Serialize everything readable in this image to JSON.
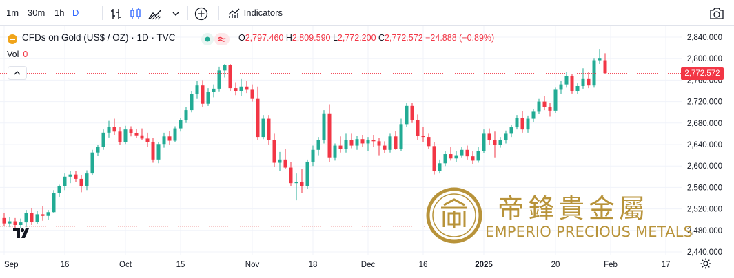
{
  "toolbar": {
    "intervals": [
      {
        "label": "1m",
        "active": false
      },
      {
        "label": "30m",
        "active": false
      },
      {
        "label": "1h",
        "active": false
      },
      {
        "label": "D",
        "active": true
      }
    ],
    "indicators_label": "Indicators"
  },
  "legend": {
    "symbol_title": "CFDs on Gold (US$ / OZ) · 1D · TVC",
    "open_label": "O",
    "open": "2,797.460",
    "high_label": "H",
    "high": "2,809.590",
    "low_label": "L",
    "low": "2,772.200",
    "close_label": "C",
    "close": "2,772.572",
    "change": "−24.888 (−0.89%)",
    "volume_label": "Vol",
    "volume": "0"
  },
  "last_price_label": "2,772.572",
  "watermark": {
    "chinese": "帝鋒貴金屬",
    "english": "EMPERIO PRECIOUS METALS"
  },
  "colors": {
    "up": "#22ab94",
    "down": "#f23645",
    "accent": "#2962ff",
    "watermark_gold": "#b8933a",
    "grid": "#f0f3fa"
  },
  "chart_data": {
    "type": "candlestick",
    "title": "CFDs on Gold (US$ / OZ) · 1D · TVC",
    "ylim": [
      2440,
      2840
    ],
    "y_ticks": [
      2440,
      2480,
      2520,
      2560,
      2600,
      2640,
      2680,
      2720,
      2760,
      2800,
      2840
    ],
    "y_tick_labels": [
      "2,440.000",
      "2,480.000",
      "2,520.000",
      "2,560.000",
      "2,600.000",
      "2,640.000",
      "2,680.000",
      "2,720.000",
      "2,760.000",
      "2,800.000",
      "2,840.000"
    ],
    "x_tick_labels": [
      {
        "label": "Sep",
        "index": 0
      },
      {
        "label": "16",
        "index": 11
      },
      {
        "label": "Oct",
        "index": 22
      },
      {
        "label": "15",
        "index": 32
      },
      {
        "label": "Nov",
        "index": 45
      },
      {
        "label": "18",
        "index": 56
      },
      {
        "label": "Dec",
        "index": 66
      },
      {
        "label": "16",
        "index": 76
      },
      {
        "label": "2025",
        "index": 87
      },
      {
        "label": "20",
        "index": 100
      },
      {
        "label": "Feb",
        "index": 110
      },
      {
        "label": "17",
        "index": 120
      }
    ],
    "last_price": 2772.572,
    "ohlc": [
      [
        2503,
        2513,
        2488,
        2493
      ],
      [
        2493,
        2505,
        2486,
        2497
      ],
      [
        2497,
        2503,
        2481,
        2490
      ],
      [
        2490,
        2502,
        2484,
        2495
      ],
      [
        2495,
        2518,
        2486,
        2512
      ],
      [
        2512,
        2521,
        2490,
        2496
      ],
      [
        2496,
        2516,
        2492,
        2510
      ],
      [
        2510,
        2525,
        2498,
        2507
      ],
      [
        2507,
        2518,
        2500,
        2514
      ],
      [
        2514,
        2555,
        2512,
        2550
      ],
      [
        2550,
        2565,
        2542,
        2562
      ],
      [
        2562,
        2586,
        2555,
        2580
      ],
      [
        2580,
        2590,
        2568,
        2584
      ],
      [
        2584,
        2591,
        2570,
        2576
      ],
      [
        2576,
        2583,
        2551,
        2562
      ],
      [
        2562,
        2592,
        2555,
        2586
      ],
      [
        2586,
        2630,
        2583,
        2625
      ],
      [
        2625,
        2640,
        2619,
        2635
      ],
      [
        2635,
        2668,
        2630,
        2662
      ],
      [
        2662,
        2684,
        2653,
        2673
      ],
      [
        2673,
        2688,
        2658,
        2664
      ],
      [
        2664,
        2672,
        2640,
        2645
      ],
      [
        2645,
        2675,
        2641,
        2668
      ],
      [
        2668,
        2674,
        2655,
        2661
      ],
      [
        2661,
        2669,
        2652,
        2657
      ],
      [
        2657,
        2670,
        2648,
        2651
      ],
      [
        2651,
        2662,
        2636,
        2645
      ],
      [
        2645,
        2652,
        2606,
        2612
      ],
      [
        2612,
        2645,
        2605,
        2641
      ],
      [
        2641,
        2662,
        2634,
        2655
      ],
      [
        2655,
        2665,
        2640,
        2647
      ],
      [
        2647,
        2674,
        2644,
        2670
      ],
      [
        2670,
        2690,
        2664,
        2685
      ],
      [
        2685,
        2710,
        2680,
        2704
      ],
      [
        2704,
        2740,
        2700,
        2734
      ],
      [
        2734,
        2758,
        2725,
        2750
      ],
      [
        2750,
        2760,
        2710,
        2716
      ],
      [
        2716,
        2745,
        2712,
        2738
      ],
      [
        2738,
        2752,
        2728,
        2744
      ],
      [
        2744,
        2785,
        2739,
        2778
      ],
      [
        2778,
        2790,
        2765,
        2788
      ],
      [
        2788,
        2790,
        2740,
        2745
      ],
      [
        2745,
        2756,
        2732,
        2740
      ],
      [
        2740,
        2762,
        2730,
        2748
      ],
      [
        2748,
        2758,
        2736,
        2742
      ],
      [
        2742,
        2752,
        2720,
        2725
      ],
      [
        2725,
        2748,
        2648,
        2654
      ],
      [
        2654,
        2695,
        2650,
        2688
      ],
      [
        2688,
        2695,
        2640,
        2648
      ],
      [
        2648,
        2660,
        2598,
        2606
      ],
      [
        2606,
        2626,
        2590,
        2612
      ],
      [
        2612,
        2632,
        2594,
        2597
      ],
      [
        2597,
        2608,
        2562,
        2568
      ],
      [
        2568,
        2586,
        2536,
        2570
      ],
      [
        2570,
        2595,
        2550,
        2562
      ],
      [
        2562,
        2612,
        2558,
        2608
      ],
      [
        2608,
        2638,
        2600,
        2630
      ],
      [
        2630,
        2654,
        2620,
        2648
      ],
      [
        2648,
        2704,
        2642,
        2698
      ],
      [
        2698,
        2715,
        2608,
        2616
      ],
      [
        2616,
        2642,
        2610,
        2638
      ],
      [
        2638,
        2655,
        2625,
        2632
      ],
      [
        2632,
        2660,
        2625,
        2648
      ],
      [
        2648,
        2660,
        2633,
        2638
      ],
      [
        2638,
        2656,
        2630,
        2650
      ],
      [
        2650,
        2658,
        2636,
        2642
      ],
      [
        2642,
        2654,
        2628,
        2648
      ],
      [
        2648,
        2658,
        2636,
        2646
      ],
      [
        2646,
        2652,
        2620,
        2638
      ],
      [
        2638,
        2646,
        2624,
        2630
      ],
      [
        2630,
        2660,
        2625,
        2655
      ],
      [
        2655,
        2665,
        2630,
        2632
      ],
      [
        2632,
        2688,
        2628,
        2678
      ],
      [
        2678,
        2718,
        2673,
        2712
      ],
      [
        2712,
        2718,
        2680,
        2686
      ],
      [
        2686,
        2696,
        2648,
        2656
      ],
      [
        2656,
        2672,
        2644,
        2654
      ],
      [
        2654,
        2660,
        2632,
        2637
      ],
      [
        2637,
        2645,
        2584,
        2590
      ],
      [
        2590,
        2612,
        2586,
        2605
      ],
      [
        2605,
        2628,
        2600,
        2622
      ],
      [
        2622,
        2635,
        2610,
        2614
      ],
      [
        2614,
        2628,
        2608,
        2620
      ],
      [
        2620,
        2636,
        2616,
        2630
      ],
      [
        2630,
        2638,
        2612,
        2618
      ],
      [
        2618,
        2628,
        2604,
        2610
      ],
      [
        2610,
        2636,
        2606,
        2628
      ],
      [
        2628,
        2668,
        2624,
        2660
      ],
      [
        2660,
        2670,
        2640,
        2648
      ],
      [
        2648,
        2664,
        2616,
        2640
      ],
      [
        2640,
        2654,
        2634,
        2648
      ],
      [
        2648,
        2666,
        2642,
        2660
      ],
      [
        2660,
        2676,
        2654,
        2672
      ],
      [
        2672,
        2695,
        2668,
        2690
      ],
      [
        2690,
        2702,
        2662,
        2668
      ],
      [
        2668,
        2694,
        2662,
        2688
      ],
      [
        2688,
        2706,
        2682,
        2701
      ],
      [
        2701,
        2725,
        2697,
        2720
      ],
      [
        2720,
        2730,
        2704,
        2710
      ],
      [
        2710,
        2718,
        2692,
        2703
      ],
      [
        2703,
        2746,
        2699,
        2742
      ],
      [
        2742,
        2758,
        2734,
        2752
      ],
      [
        2752,
        2775,
        2746,
        2768
      ],
      [
        2768,
        2772,
        2735,
        2740
      ],
      [
        2740,
        2754,
        2734,
        2749
      ],
      [
        2749,
        2782,
        2744,
        2762
      ],
      [
        2762,
        2775,
        2745,
        2750
      ],
      [
        2750,
        2800,
        2746,
        2797
      ],
      [
        2797,
        2818,
        2790,
        2800
      ],
      [
        2797,
        2810,
        2772,
        2773
      ]
    ]
  }
}
